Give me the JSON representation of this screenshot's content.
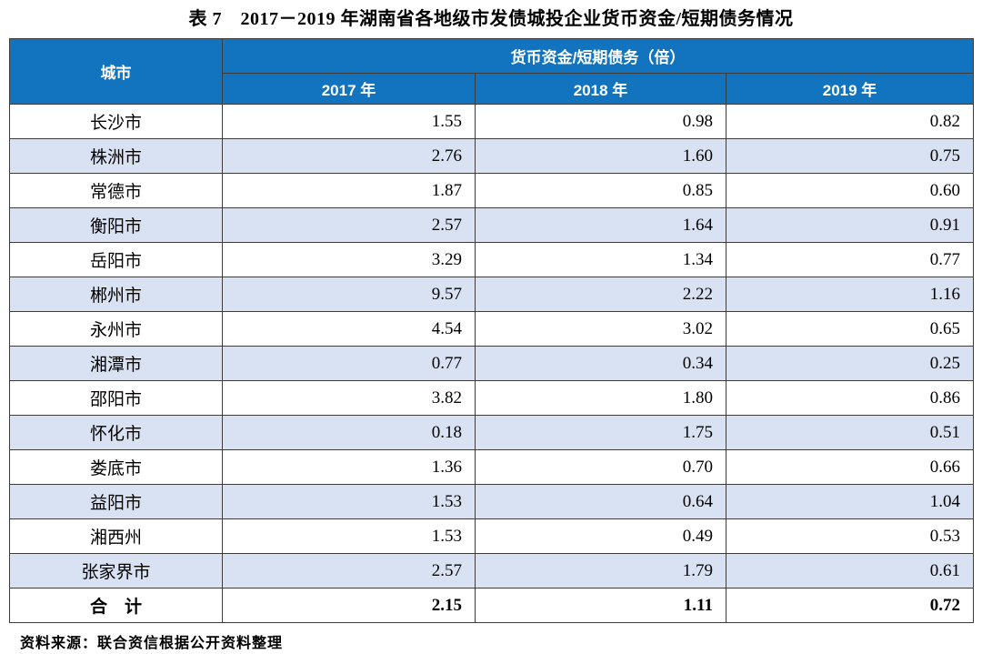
{
  "title": "表 7　2017－2019 年湖南省各地级市发债城投企业货币资金/短期债务情况",
  "table": {
    "corner_header": "城市",
    "group_header": "货币资金/短期债务（倍）",
    "year_headers": [
      "2017 年",
      "2018 年",
      "2019 年"
    ],
    "rows": [
      {
        "city": "长沙市",
        "values": [
          "1.55",
          "0.98",
          "0.82"
        ]
      },
      {
        "city": "株洲市",
        "values": [
          "2.76",
          "1.60",
          "0.75"
        ]
      },
      {
        "city": "常德市",
        "values": [
          "1.87",
          "0.85",
          "0.60"
        ]
      },
      {
        "city": "衡阳市",
        "values": [
          "2.57",
          "1.64",
          "0.91"
        ]
      },
      {
        "city": "岳阳市",
        "values": [
          "3.29",
          "1.34",
          "0.77"
        ]
      },
      {
        "city": "郴州市",
        "values": [
          "9.57",
          "2.22",
          "1.16"
        ]
      },
      {
        "city": "永州市",
        "values": [
          "4.54",
          "3.02",
          "0.65"
        ]
      },
      {
        "city": "湘潭市",
        "values": [
          "0.77",
          "0.34",
          "0.25"
        ]
      },
      {
        "city": "邵阳市",
        "values": [
          "3.82",
          "1.80",
          "0.86"
        ]
      },
      {
        "city": "怀化市",
        "values": [
          "0.18",
          "1.75",
          "0.51"
        ]
      },
      {
        "city": "娄底市",
        "values": [
          "1.36",
          "0.70",
          "0.66"
        ]
      },
      {
        "city": "益阳市",
        "values": [
          "1.53",
          "0.64",
          "1.04"
        ]
      },
      {
        "city": "湘西州",
        "values": [
          "1.53",
          "0.49",
          "0.53"
        ]
      },
      {
        "city": "张家界市",
        "values": [
          "2.57",
          "1.79",
          "0.61"
        ]
      }
    ],
    "total_row": {
      "label": "合　计",
      "values": [
        "2.15",
        "1.11",
        "0.72"
      ]
    }
  },
  "source_note": "资料来源：联合资信根据公开资料整理",
  "colors": {
    "header_bg": "#1273BE",
    "header_text": "#FFFFFF",
    "alt_row_bg": "#D9E2F3",
    "border": "#3C3C3C",
    "body_text": "#000000"
  }
}
